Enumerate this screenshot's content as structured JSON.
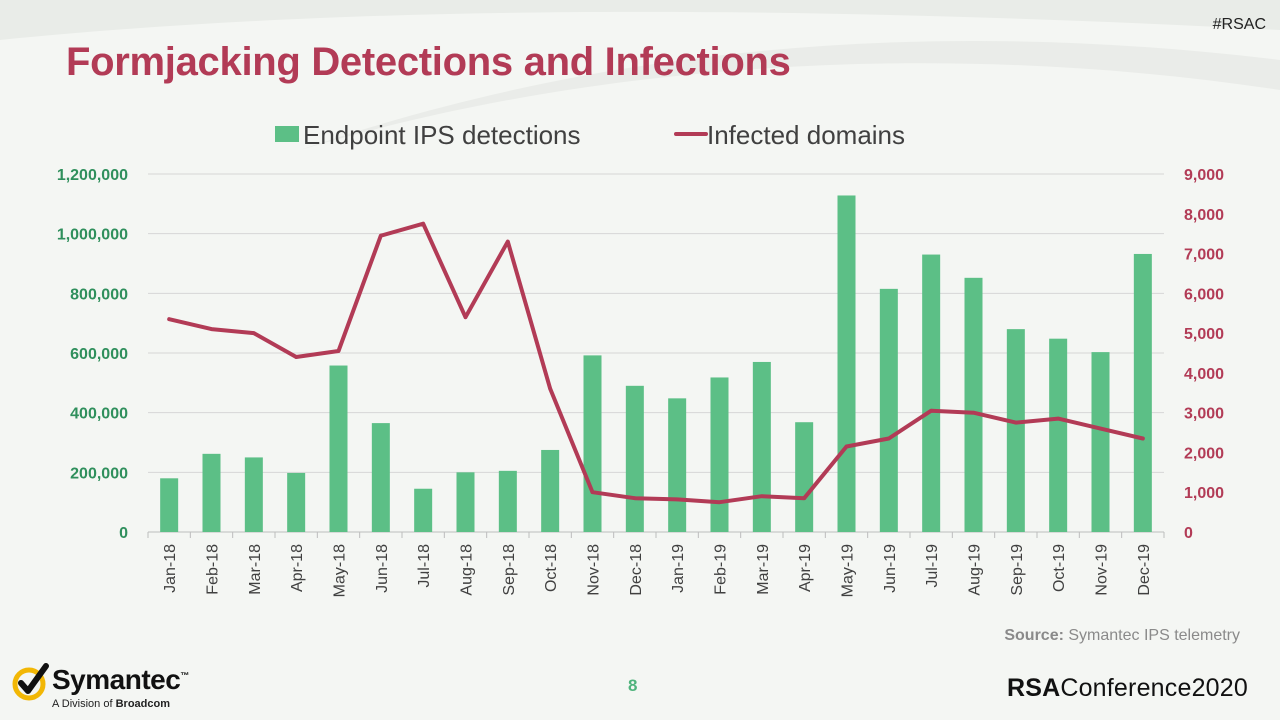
{
  "header": {
    "hashtag": "#RSAC",
    "title": "Formjacking Detections and Infections"
  },
  "footer": {
    "source_label": "Source:",
    "source_text": "Symantec IPS telemetry",
    "page_number": "8",
    "left_logo": {
      "brand": "Symantec",
      "tm": "™",
      "sub_prefix": "A Division of ",
      "sub_bold": "Broadcom",
      "icon": "checkmark-logo-icon"
    },
    "right_logo": {
      "prefix": "RSA",
      "suffix": "Conference2020"
    }
  },
  "colors": {
    "bar": "#5cbf86",
    "line": "#b23b56",
    "left_axis_text": "#2f8f5c",
    "right_axis_text": "#b23b56",
    "title": "#b23b56"
  },
  "chart_data": {
    "type": "bar",
    "categories": [
      "Jan-18",
      "Feb-18",
      "Mar-18",
      "Apr-18",
      "May-18",
      "Jun-18",
      "Jul-18",
      "Aug-18",
      "Sep-18",
      "Oct-18",
      "Nov-18",
      "Dec-18",
      "Jan-19",
      "Feb-19",
      "Mar-19",
      "Apr-19",
      "May-19",
      "Jun-19",
      "Jul-19",
      "Aug-19",
      "Sep-19",
      "Oct-19",
      "Nov-19",
      "Dec-19"
    ],
    "series": [
      {
        "name": "Endpoint IPS detections",
        "type": "bar",
        "axis": "left",
        "values": [
          180000,
          262000,
          250000,
          198000,
          558000,
          365000,
          145000,
          200000,
          205000,
          275000,
          592000,
          490000,
          448000,
          518000,
          570000,
          368000,
          1128000,
          815000,
          930000,
          852000,
          680000,
          648000,
          603000,
          932000
        ]
      },
      {
        "name": "Infected domains",
        "type": "line",
        "axis": "right",
        "values": [
          5350,
          5100,
          5000,
          4400,
          4550,
          7450,
          7750,
          5400,
          7300,
          3600,
          1000,
          850,
          820,
          750,
          900,
          850,
          2150,
          2350,
          3050,
          3000,
          2750,
          2850,
          2600,
          2350
        ]
      }
    ],
    "ylim_left": [
      0,
      1200000
    ],
    "yticks_left": [
      0,
      200000,
      400000,
      600000,
      800000,
      1000000,
      1200000
    ],
    "ytick_labels_left": [
      "0",
      "200,000",
      "400,000",
      "600,000",
      "800,000",
      "1,000,000",
      "1,200,000"
    ],
    "ylim_right": [
      0,
      9000
    ],
    "yticks_right": [
      0,
      1000,
      2000,
      3000,
      4000,
      5000,
      6000,
      7000,
      8000,
      9000
    ],
    "ytick_labels_right": [
      "0",
      "1,000",
      "2,000",
      "3,000",
      "4,000",
      "5,000",
      "6,000",
      "7,000",
      "8,000",
      "9,000"
    ],
    "grid": true,
    "legend": "top-center"
  }
}
